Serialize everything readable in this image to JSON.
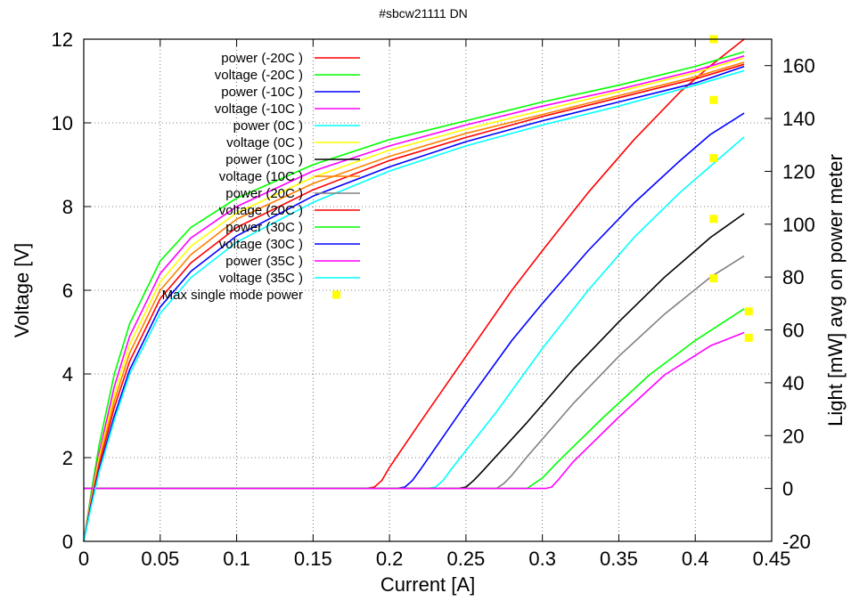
{
  "chart_data": {
    "type": "line",
    "title": "#sbcw21111 DN",
    "xlabel": "Current [A]",
    "ylabel": "Voltage [V]",
    "y2label": "Light [mW] avg on power meter",
    "xlim": [
      0,
      0.45
    ],
    "ylim": [
      0,
      12
    ],
    "y2lim": [
      -20,
      170
    ],
    "xticks": [
      "0",
      "0.05",
      "0.1",
      "0.15",
      "0.2",
      "0.25",
      "0.3",
      "0.35",
      "0.4",
      "0.45"
    ],
    "yticks": [
      "0",
      "2",
      "4",
      "6",
      "8",
      "10",
      "12"
    ],
    "y2ticks": [
      "-20",
      "0",
      "20",
      "40",
      "60",
      "80",
      "100",
      "120",
      "140",
      "160"
    ],
    "grid": true,
    "legend_position": "top-left",
    "series": [
      {
        "name": "power (-20C )",
        "axis": "y2",
        "color": "#ff0000",
        "x": [
          0,
          0.185,
          0.19,
          0.195,
          0.2,
          0.22,
          0.25,
          0.28,
          0.3,
          0.33,
          0.36,
          0.39,
          0.41,
          0.432
        ],
        "y": [
          0,
          0,
          0.5,
          3,
          8,
          25,
          50,
          75,
          90,
          112,
          132,
          150,
          160,
          170
        ]
      },
      {
        "name": "voltage (-20C )",
        "axis": "y",
        "color": "#00ff00",
        "x": [
          0,
          0.005,
          0.01,
          0.02,
          0.03,
          0.05,
          0.07,
          0.1,
          0.15,
          0.2,
          0.25,
          0.3,
          0.35,
          0.4,
          0.432
        ],
        "y": [
          0,
          1.2,
          2.3,
          4.0,
          5.2,
          6.7,
          7.5,
          8.2,
          9.0,
          9.6,
          10.05,
          10.5,
          10.9,
          11.35,
          11.7
        ]
      },
      {
        "name": "power (-10C )",
        "axis": "y2",
        "color": "#0000ff",
        "x": [
          0,
          0.205,
          0.21,
          0.215,
          0.22,
          0.25,
          0.28,
          0.3,
          0.33,
          0.36,
          0.39,
          0.41,
          0.432
        ],
        "y": [
          0,
          0,
          0.5,
          3,
          7,
          32,
          56,
          70,
          90,
          108,
          124,
          134,
          142
        ]
      },
      {
        "name": "voltage (-10C )",
        "axis": "y",
        "color": "#ff00ff",
        "x": [
          0,
          0.005,
          0.01,
          0.02,
          0.03,
          0.05,
          0.07,
          0.1,
          0.15,
          0.2,
          0.25,
          0.3,
          0.35,
          0.4,
          0.432
        ],
        "y": [
          0,
          1.1,
          2.1,
          3.7,
          4.9,
          6.4,
          7.25,
          8.0,
          8.85,
          9.45,
          9.95,
          10.4,
          10.8,
          11.25,
          11.6
        ]
      },
      {
        "name": "power (0C )",
        "axis": "y2",
        "color": "#00ffff",
        "x": [
          0,
          0.225,
          0.23,
          0.235,
          0.24,
          0.27,
          0.3,
          0.33,
          0.36,
          0.39,
          0.41,
          0.432
        ],
        "y": [
          0,
          0,
          0.5,
          3,
          7,
          29,
          53,
          75,
          95,
          112,
          122,
          133
        ]
      },
      {
        "name": "voltage (0C )",
        "axis": "y",
        "color": "#ffff00",
        "x": [
          0,
          0.005,
          0.01,
          0.02,
          0.03,
          0.05,
          0.07,
          0.1,
          0.15,
          0.2,
          0.25,
          0.3,
          0.35,
          0.4,
          0.432
        ],
        "y": [
          0,
          1.05,
          2.0,
          3.5,
          4.7,
          6.2,
          7.05,
          7.85,
          8.7,
          9.35,
          9.85,
          10.3,
          10.75,
          11.2,
          11.55
        ]
      },
      {
        "name": "power (10C )",
        "axis": "y2",
        "color": "#000000",
        "x": [
          0,
          0.245,
          0.25,
          0.255,
          0.26,
          0.29,
          0.32,
          0.35,
          0.38,
          0.41,
          0.432
        ],
        "y": [
          0,
          0,
          0.5,
          3,
          6,
          25,
          45,
          63,
          80,
          95,
          104
        ]
      },
      {
        "name": "voltage (10C )",
        "axis": "y",
        "color": "#ff8000",
        "x": [
          0,
          0.005,
          0.01,
          0.02,
          0.03,
          0.05,
          0.07,
          0.1,
          0.15,
          0.2,
          0.25,
          0.3,
          0.35,
          0.4,
          0.432
        ],
        "y": [
          0,
          1.0,
          1.9,
          3.35,
          4.5,
          6.0,
          6.85,
          7.7,
          8.55,
          9.2,
          9.75,
          10.2,
          10.65,
          11.1,
          11.45
        ]
      },
      {
        "name": "power (20C )",
        "axis": "y2",
        "color": "#808080",
        "x": [
          0,
          0.27,
          0.275,
          0.28,
          0.29,
          0.32,
          0.35,
          0.38,
          0.41,
          0.432
        ],
        "y": [
          0,
          0,
          2,
          5,
          12,
          32,
          50,
          66,
          80,
          88
        ]
      },
      {
        "name": "voltage (20C )",
        "axis": "y",
        "color": "#ff0000",
        "x": [
          0,
          0.005,
          0.01,
          0.02,
          0.03,
          0.05,
          0.07,
          0.1,
          0.15,
          0.2,
          0.25,
          0.3,
          0.35,
          0.4,
          0.432
        ],
        "y": [
          0,
          0.95,
          1.8,
          3.2,
          4.3,
          5.8,
          6.65,
          7.5,
          8.4,
          9.1,
          9.65,
          10.15,
          10.6,
          11.05,
          11.4
        ]
      },
      {
        "name": "power (30C )",
        "axis": "y2",
        "color": "#00ff00",
        "x": [
          0,
          0.29,
          0.295,
          0.3,
          0.31,
          0.34,
          0.37,
          0.4,
          0.432
        ],
        "y": [
          0,
          0,
          2,
          4,
          10,
          27,
          43,
          56,
          68
        ]
      },
      {
        "name": "voltage (30C )",
        "axis": "y",
        "color": "#0000ff",
        "x": [
          0,
          0.005,
          0.01,
          0.02,
          0.03,
          0.05,
          0.07,
          0.1,
          0.15,
          0.2,
          0.25,
          0.3,
          0.35,
          0.4,
          0.432
        ],
        "y": [
          0,
          0.9,
          1.7,
          3.0,
          4.1,
          5.6,
          6.45,
          7.3,
          8.25,
          8.95,
          9.55,
          10.05,
          10.5,
          10.95,
          11.35
        ]
      },
      {
        "name": "power (35C )",
        "axis": "y2",
        "color": "#ff00ff",
        "x": [
          0,
          0.302,
          0.306,
          0.31,
          0.32,
          0.35,
          0.38,
          0.41,
          0.432
        ],
        "y": [
          0,
          0,
          0.5,
          3,
          10,
          27,
          43,
          54,
          59
        ]
      },
      {
        "name": "voltage (35C )",
        "axis": "y",
        "color": "#00ffff",
        "x": [
          0,
          0.005,
          0.01,
          0.02,
          0.03,
          0.05,
          0.07,
          0.1,
          0.15,
          0.2,
          0.25,
          0.3,
          0.35,
          0.4,
          0.432
        ],
        "y": [
          0,
          0.85,
          1.65,
          2.9,
          4.0,
          5.45,
          6.3,
          7.15,
          8.1,
          8.85,
          9.45,
          9.95,
          10.4,
          10.9,
          11.25
        ]
      }
    ],
    "markers": {
      "name": "Max single mode power",
      "axis": "y2",
      "color": "#ffff00",
      "x": [
        0.412,
        0.412,
        0.412,
        0.412,
        0.412,
        0.435,
        0.435
      ],
      "y": [
        170,
        147,
        125,
        102,
        79.5,
        67,
        57
      ]
    }
  }
}
